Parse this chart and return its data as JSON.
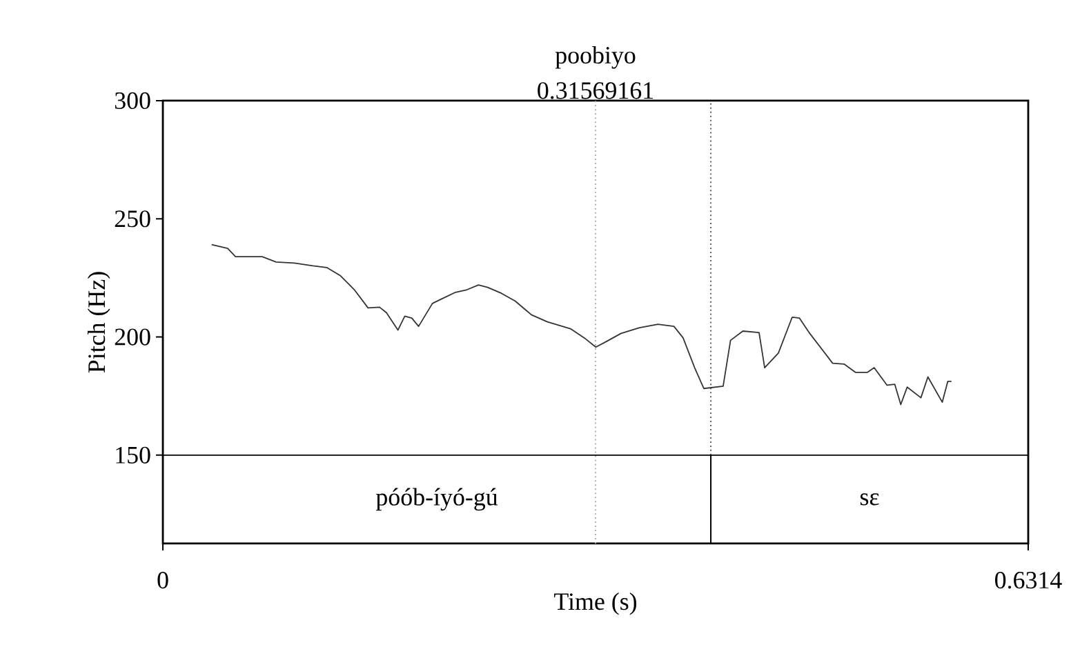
{
  "chart_data": {
    "type": "line",
    "xlabel": "Time (s)",
    "ylabel": "Pitch (Hz)",
    "xlim": [
      0,
      0.6314
    ],
    "ylim": [
      112.6,
      300
    ],
    "xticks": [
      0,
      0.6314
    ],
    "yticks": [
      150,
      200,
      250,
      300
    ],
    "series": [
      {
        "color": "#333333",
        "x": [
          0.0356,
          0.0473,
          0.053,
          0.0725,
          0.0826,
          0.096,
          0.1095,
          0.1195,
          0.1296,
          0.1397,
          0.1497,
          0.1581,
          0.1631,
          0.1715,
          0.1765,
          0.1816,
          0.1866,
          0.1967,
          0.2034,
          0.2135,
          0.2219,
          0.2303,
          0.237,
          0.247,
          0.2571,
          0.2689,
          0.2806,
          0.2974,
          0.3075,
          0.3159,
          0.3243,
          0.3343,
          0.3477,
          0.3612,
          0.3729,
          0.3796,
          0.388,
          0.3947,
          0.4088,
          0.4142,
          0.4232,
          0.435,
          0.4391,
          0.4491,
          0.4592,
          0.4645,
          0.472,
          0.4887,
          0.4972,
          0.5055,
          0.5139,
          0.519,
          0.5284,
          0.534,
          0.5384,
          0.5431,
          0.5531,
          0.5582,
          0.5687,
          0.5727,
          0.5754
        ],
        "values": [
          239.1,
          237.5,
          234.0,
          234.0,
          231.7,
          231.3,
          230.1,
          229.4,
          225.9,
          220.0,
          212.3,
          212.6,
          210.3,
          202.9,
          208.8,
          208.0,
          204.5,
          214.2,
          216.1,
          218.9,
          220.0,
          222.0,
          221.0,
          218.5,
          215.2,
          209.4,
          206.4,
          203.5,
          199.6,
          195.7,
          198.3,
          201.5,
          203.9,
          205.4,
          204.5,
          199.6,
          187.0,
          178.2,
          179.2,
          198.6,
          202.5,
          201.9,
          187.0,
          193.2,
          208.4,
          208.0,
          201.5,
          188.9,
          188.5,
          185.0,
          185.0,
          187.0,
          179.6,
          180.0,
          171.4,
          178.8,
          174.3,
          183.1,
          172.4,
          181.2,
          181.2
        ]
      }
    ],
    "ref_lines": [
      {
        "axis": "x",
        "value": 0.31569161,
        "label": "0.31569161",
        "color": "#b0b0b0",
        "line_style": "dotted"
      },
      {
        "axis": "x",
        "value": 0.3998,
        "color": "#606060",
        "line_style": "dotted"
      },
      {
        "axis": "x",
        "value": 0.3998,
        "color": "#000000",
        "line_style": "solid"
      },
      {
        "axis": "y",
        "value": 150,
        "color": "#000000"
      }
    ],
    "annotations": [
      {
        "text": "poobiyo",
        "x": 0.31569161,
        "y": 300
      },
      "póób-íyó-gú",
      "sɛ"
    ],
    "grid": false,
    "marker": "none",
    "line_style": "solid"
  }
}
